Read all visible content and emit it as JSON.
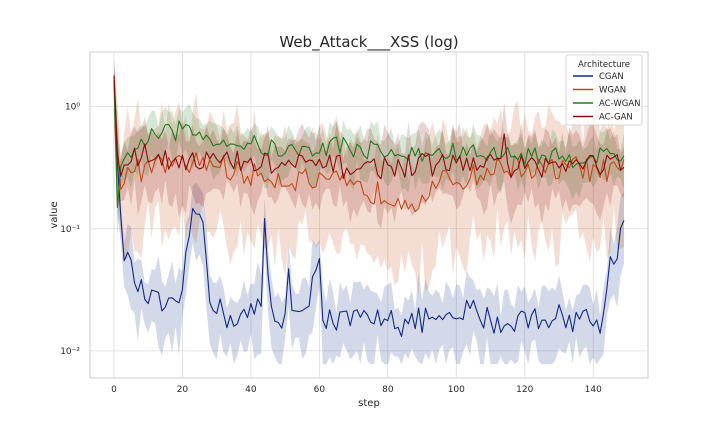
{
  "chart_data": {
    "type": "line",
    "title": "Web_Attack___XSS (log)",
    "xlabel": "step",
    "ylabel": "value",
    "yscale": "log",
    "xlim": [
      -7,
      156
    ],
    "ylim": [
      0.006,
      2.8
    ],
    "x_ticks": [
      0,
      20,
      40,
      60,
      80,
      100,
      120,
      140
    ],
    "x_tick_labels": [
      "0",
      "20",
      "40",
      "60",
      "80",
      "100",
      "120",
      "140"
    ],
    "y_ticks": [
      0.01,
      0.1,
      1
    ],
    "y_tick_labels": [
      "10⁻²",
      "10⁻¹",
      "10⁰"
    ],
    "grid": true,
    "legend": {
      "title": "Architecture",
      "placement": "top-right"
    },
    "series": [
      {
        "name": "CGAN",
        "color": "#0e2a87",
        "anchors": [
          [
            0,
            1.7
          ],
          [
            1,
            0.35
          ],
          [
            2,
            0.1
          ],
          [
            3,
            0.07
          ],
          [
            5,
            0.045
          ],
          [
            8,
            0.03
          ],
          [
            12,
            0.025
          ],
          [
            16,
            0.022
          ],
          [
            19,
            0.02
          ],
          [
            22,
            0.1
          ],
          [
            24,
            0.13
          ],
          [
            26,
            0.12
          ],
          [
            28,
            0.03
          ],
          [
            32,
            0.019
          ],
          [
            36,
            0.019
          ],
          [
            40,
            0.02
          ],
          [
            43,
            0.023
          ],
          [
            44,
            0.11
          ],
          [
            46,
            0.02
          ],
          [
            50,
            0.018
          ],
          [
            51,
            0.06
          ],
          [
            52,
            0.02
          ],
          [
            56,
            0.018
          ],
          [
            60,
            0.07
          ],
          [
            61,
            0.02
          ],
          [
            66,
            0.017
          ],
          [
            70,
            0.018
          ],
          [
            76,
            0.017
          ],
          [
            80,
            0.022
          ],
          [
            84,
            0.016
          ],
          [
            88,
            0.017
          ],
          [
            92,
            0.019
          ],
          [
            96,
            0.016
          ],
          [
            100,
            0.018
          ],
          [
            104,
            0.022
          ],
          [
            110,
            0.018
          ],
          [
            114,
            0.016
          ],
          [
            118,
            0.019
          ],
          [
            122,
            0.018
          ],
          [
            128,
            0.02
          ],
          [
            132,
            0.018
          ],
          [
            136,
            0.019
          ],
          [
            140,
            0.018
          ],
          [
            143,
            0.017
          ],
          [
            145,
            0.06
          ],
          [
            147,
            0.07
          ],
          [
            149,
            0.11
          ]
        ],
        "spread": 0.55,
        "noise": 0.22
      },
      {
        "name": "WGAN",
        "color": "#c24a12",
        "anchors": [
          [
            0,
            1.8
          ],
          [
            1,
            0.5
          ],
          [
            2,
            0.25
          ],
          [
            5,
            0.3
          ],
          [
            10,
            0.3
          ],
          [
            15,
            0.35
          ],
          [
            20,
            0.32
          ],
          [
            25,
            0.36
          ],
          [
            30,
            0.34
          ],
          [
            35,
            0.3
          ],
          [
            40,
            0.27
          ],
          [
            45,
            0.28
          ],
          [
            50,
            0.25
          ],
          [
            55,
            0.26
          ],
          [
            60,
            0.23
          ],
          [
            65,
            0.24
          ],
          [
            70,
            0.21
          ],
          [
            75,
            0.2
          ],
          [
            80,
            0.19
          ],
          [
            85,
            0.18
          ],
          [
            88,
            0.17
          ],
          [
            92,
            0.2
          ],
          [
            96,
            0.24
          ],
          [
            100,
            0.25
          ],
          [
            105,
            0.27
          ],
          [
            110,
            0.3
          ],
          [
            115,
            0.33
          ],
          [
            120,
            0.32
          ],
          [
            125,
            0.3
          ],
          [
            130,
            0.3
          ],
          [
            135,
            0.32
          ],
          [
            140,
            0.3
          ],
          [
            145,
            0.29
          ],
          [
            149,
            0.3
          ]
        ],
        "spread": 0.9,
        "noise": 0.2
      },
      {
        "name": "AC-WGAN",
        "color": "#1f7a1f",
        "anchors": [
          [
            0,
            1.6
          ],
          [
            1,
            0.15
          ],
          [
            2,
            0.3
          ],
          [
            5,
            0.45
          ],
          [
            10,
            0.55
          ],
          [
            15,
            0.6
          ],
          [
            20,
            0.65
          ],
          [
            25,
            0.6
          ],
          [
            30,
            0.55
          ],
          [
            35,
            0.5
          ],
          [
            40,
            0.5
          ],
          [
            45,
            0.45
          ],
          [
            50,
            0.45
          ],
          [
            55,
            0.42
          ],
          [
            60,
            0.45
          ],
          [
            65,
            0.5
          ],
          [
            70,
            0.45
          ],
          [
            75,
            0.45
          ],
          [
            80,
            0.42
          ],
          [
            85,
            0.4
          ],
          [
            90,
            0.4
          ],
          [
            95,
            0.42
          ],
          [
            100,
            0.42
          ],
          [
            105,
            0.42
          ],
          [
            110,
            0.4
          ],
          [
            115,
            0.4
          ],
          [
            120,
            0.4
          ],
          [
            125,
            0.4
          ],
          [
            130,
            0.38
          ],
          [
            135,
            0.38
          ],
          [
            140,
            0.4
          ],
          [
            145,
            0.4
          ],
          [
            149,
            0.38
          ]
        ],
        "spread": 0.35,
        "noise": 0.16
      },
      {
        "name": "AC-GAN",
        "color": "#8b0a0a",
        "anchors": [
          [
            0,
            1.8
          ],
          [
            1,
            0.4
          ],
          [
            2,
            0.3
          ],
          [
            5,
            0.38
          ],
          [
            10,
            0.4
          ],
          [
            15,
            0.38
          ],
          [
            20,
            0.38
          ],
          [
            25,
            0.36
          ],
          [
            30,
            0.36
          ],
          [
            35,
            0.35
          ],
          [
            40,
            0.34
          ],
          [
            45,
            0.34
          ],
          [
            50,
            0.33
          ],
          [
            55,
            0.33
          ],
          [
            60,
            0.33
          ],
          [
            65,
            0.32
          ],
          [
            70,
            0.32
          ],
          [
            75,
            0.32
          ],
          [
            80,
            0.32
          ],
          [
            85,
            0.33
          ],
          [
            90,
            0.33
          ],
          [
            95,
            0.34
          ],
          [
            100,
            0.34
          ],
          [
            105,
            0.34
          ],
          [
            110,
            0.33
          ],
          [
            114,
            0.5
          ],
          [
            116,
            0.33
          ],
          [
            120,
            0.33
          ],
          [
            125,
            0.33
          ],
          [
            130,
            0.33
          ],
          [
            135,
            0.33
          ],
          [
            140,
            0.34
          ],
          [
            145,
            0.34
          ],
          [
            149,
            0.34
          ]
        ],
        "spread": 0.5,
        "noise": 0.2
      }
    ]
  }
}
